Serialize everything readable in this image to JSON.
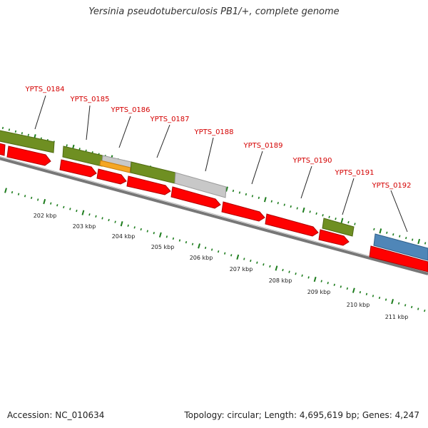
{
  "title": "Yersinia pseudotuberculosis PB1/+, complete genome",
  "footer": {
    "accession": "Accession: NC_010634",
    "summary": "Topology: circular; Length: 4,695,619 bp; Genes: 4,247"
  },
  "ruler_ticks": [
    "202 kbp",
    "203 kbp",
    "204 kbp",
    "205 kbp",
    "206 kbp",
    "207 kbp",
    "208 kbp",
    "209 kbp",
    "210 kbp",
    "211 kbp"
  ],
  "gene_labels": [
    "YPTS_0184",
    "YPTS_0185",
    "YPTS_0186",
    "YPTS_0187",
    "YPTS_0188",
    "YPTS_0189",
    "YPTS_0190",
    "YPTS_0191",
    "YPTS_0192"
  ],
  "colors": {
    "label": "#d40000",
    "cds": "#ff0000",
    "gene_olive": "#6f8f22",
    "gene_grey": "#c8c8c8",
    "gene_orange": "#f5a623",
    "gene_blue": "#4f86b8",
    "tick_green": "#1e7d1e",
    "backbone": "#777777"
  }
}
